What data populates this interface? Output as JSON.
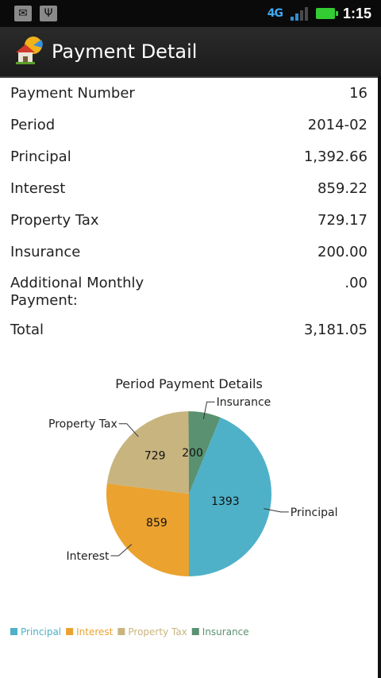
{
  "app": {
    "title": "Payment Detail"
  },
  "status_bar": {
    "time": "1:15",
    "network": "4G",
    "icons": [
      "gmail-icon",
      "usb-icon"
    ]
  },
  "details": [
    {
      "label": "Payment Number",
      "value": "16"
    },
    {
      "label": "Period",
      "value": "2014-02"
    },
    {
      "label": "Principal",
      "value": "1,392.66"
    },
    {
      "label": "Interest",
      "value": "859.22"
    },
    {
      "label": "Property Tax",
      "value": "729.17"
    },
    {
      "label": "Insurance",
      "value": "200.00"
    },
    {
      "label": "Additional Monthly\nPayment:",
      "value": ".00"
    },
    {
      "label": "Total",
      "value": "3,181.05"
    }
  ],
  "chart_data": {
    "type": "pie",
    "title": "Period Payment Details",
    "slices": [
      {
        "name": "Principal",
        "value": 1393,
        "label": "1393",
        "color": "#4eb1c8"
      },
      {
        "name": "Interest",
        "value": 859,
        "label": "859",
        "color": "#eba22f"
      },
      {
        "name": "Property Tax",
        "value": 729,
        "label": "729",
        "color": "#c8b47e"
      },
      {
        "name": "Insurance",
        "value": 200,
        "label": "200",
        "color": "#5a9170"
      }
    ],
    "legend_position": "bottom-left"
  }
}
